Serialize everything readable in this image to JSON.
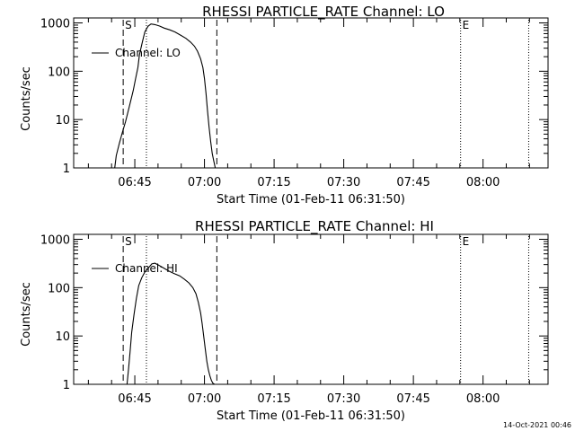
{
  "footer": {
    "timestamp": "14-Oct-2021 00:46"
  },
  "chart_data": [
    {
      "type": "line",
      "title": "RHESSI PARTICLE_RATE Channel: LO",
      "xlabel": "Start Time (01-Feb-11 06:31:50)",
      "ylabel": "Counts/sec",
      "yscale": "log",
      "xlim": [
        "06:31:50",
        "08:14:00"
      ],
      "ylim": [
        1,
        1000
      ],
      "x_ticks": [
        "06:45",
        "07:00",
        "07:15",
        "07:30",
        "07:45",
        "08:00"
      ],
      "y_ticks": [
        "1",
        "10",
        "100",
        "1000"
      ],
      "legend": {
        "position": "top-left",
        "entries": [
          "Channel: LO"
        ]
      },
      "markers": [
        {
          "label": "S",
          "time": "06:42:30",
          "style": "dashed"
        },
        {
          "label": "",
          "time": "06:47:30",
          "style": "dotted"
        },
        {
          "label": "",
          "time": "07:02:40",
          "style": "dashed"
        },
        {
          "label": "E",
          "time": "07:55:10",
          "style": "dotted"
        },
        {
          "label": "",
          "time": "08:09:50",
          "style": "dotted"
        }
      ],
      "series": [
        {
          "name": "Channel: LO",
          "x": [
            "06:40:40",
            "06:41:00",
            "06:41:40",
            "06:42:20",
            "06:43:00",
            "06:43:30",
            "06:44:00",
            "06:44:40",
            "06:45:10",
            "06:45:40",
            "06:46:00",
            "06:46:40",
            "06:47:10",
            "06:47:50",
            "06:48:30",
            "06:49:20",
            "06:50:20",
            "06:51:20",
            "06:52:30",
            "06:53:40",
            "06:54:50",
            "06:56:00",
            "06:57:00",
            "06:57:50",
            "06:58:30",
            "06:59:10",
            "06:59:40",
            "07:00:00",
            "07:00:20",
            "07:00:40",
            "07:01:00",
            "07:01:20",
            "07:01:40",
            "07:02:00",
            "07:02:20"
          ],
          "y": [
            1,
            1.8,
            3.2,
            5.5,
            9,
            14,
            22,
            40,
            70,
            120,
            220,
            420,
            650,
            850,
            950,
            920,
            860,
            780,
            720,
            650,
            560,
            480,
            400,
            330,
            260,
            180,
            120,
            70,
            35,
            15,
            7,
            3.5,
            2,
            1.4,
            1
          ]
        }
      ]
    },
    {
      "type": "line",
      "title": "RHESSI PARTICLE_RATE Channel: HI",
      "xlabel": "Start Time (01-Feb-11 06:31:50)",
      "ylabel": "Counts/sec",
      "yscale": "log",
      "xlim": [
        "06:31:50",
        "08:14:00"
      ],
      "ylim": [
        1,
        1000
      ],
      "x_ticks": [
        "06:45",
        "07:00",
        "07:15",
        "07:30",
        "07:45",
        "08:00"
      ],
      "y_ticks": [
        "1",
        "10",
        "100",
        "1000"
      ],
      "legend": {
        "position": "top-left",
        "entries": [
          "Channel: HI"
        ]
      },
      "markers": [
        {
          "label": "S",
          "time": "06:42:30",
          "style": "dashed"
        },
        {
          "label": "",
          "time": "06:47:30",
          "style": "dotted"
        },
        {
          "label": "",
          "time": "07:02:40",
          "style": "dashed"
        },
        {
          "label": "E",
          "time": "07:55:10",
          "style": "dotted"
        },
        {
          "label": "",
          "time": "08:09:50",
          "style": "dotted"
        }
      ],
      "series": [
        {
          "name": "Channel: HI",
          "x": [
            "06:43:20",
            "06:43:40",
            "06:44:00",
            "06:44:20",
            "06:44:50",
            "06:45:20",
            "06:45:50",
            "06:46:30",
            "06:47:10",
            "06:48:00",
            "06:48:40",
            "06:49:20",
            "06:50:10",
            "06:51:20",
            "06:52:20",
            "06:53:30",
            "06:54:40",
            "06:55:40",
            "06:56:40",
            "06:57:30",
            "06:58:10",
            "06:58:40",
            "06:59:10",
            "06:59:30",
            "06:59:50",
            "07:00:10",
            "07:00:30",
            "07:00:50",
            "07:01:10",
            "07:01:30",
            "07:01:50",
            "07:02:10",
            "07:02:30"
          ],
          "y": [
            1,
            2.2,
            5,
            12,
            28,
            60,
            110,
            160,
            210,
            260,
            310,
            320,
            290,
            250,
            220,
            195,
            175,
            150,
            125,
            100,
            75,
            50,
            30,
            18,
            10,
            5.5,
            3,
            2,
            1.5,
            1.2,
            1.05,
            1,
            1
          ]
        }
      ]
    }
  ]
}
